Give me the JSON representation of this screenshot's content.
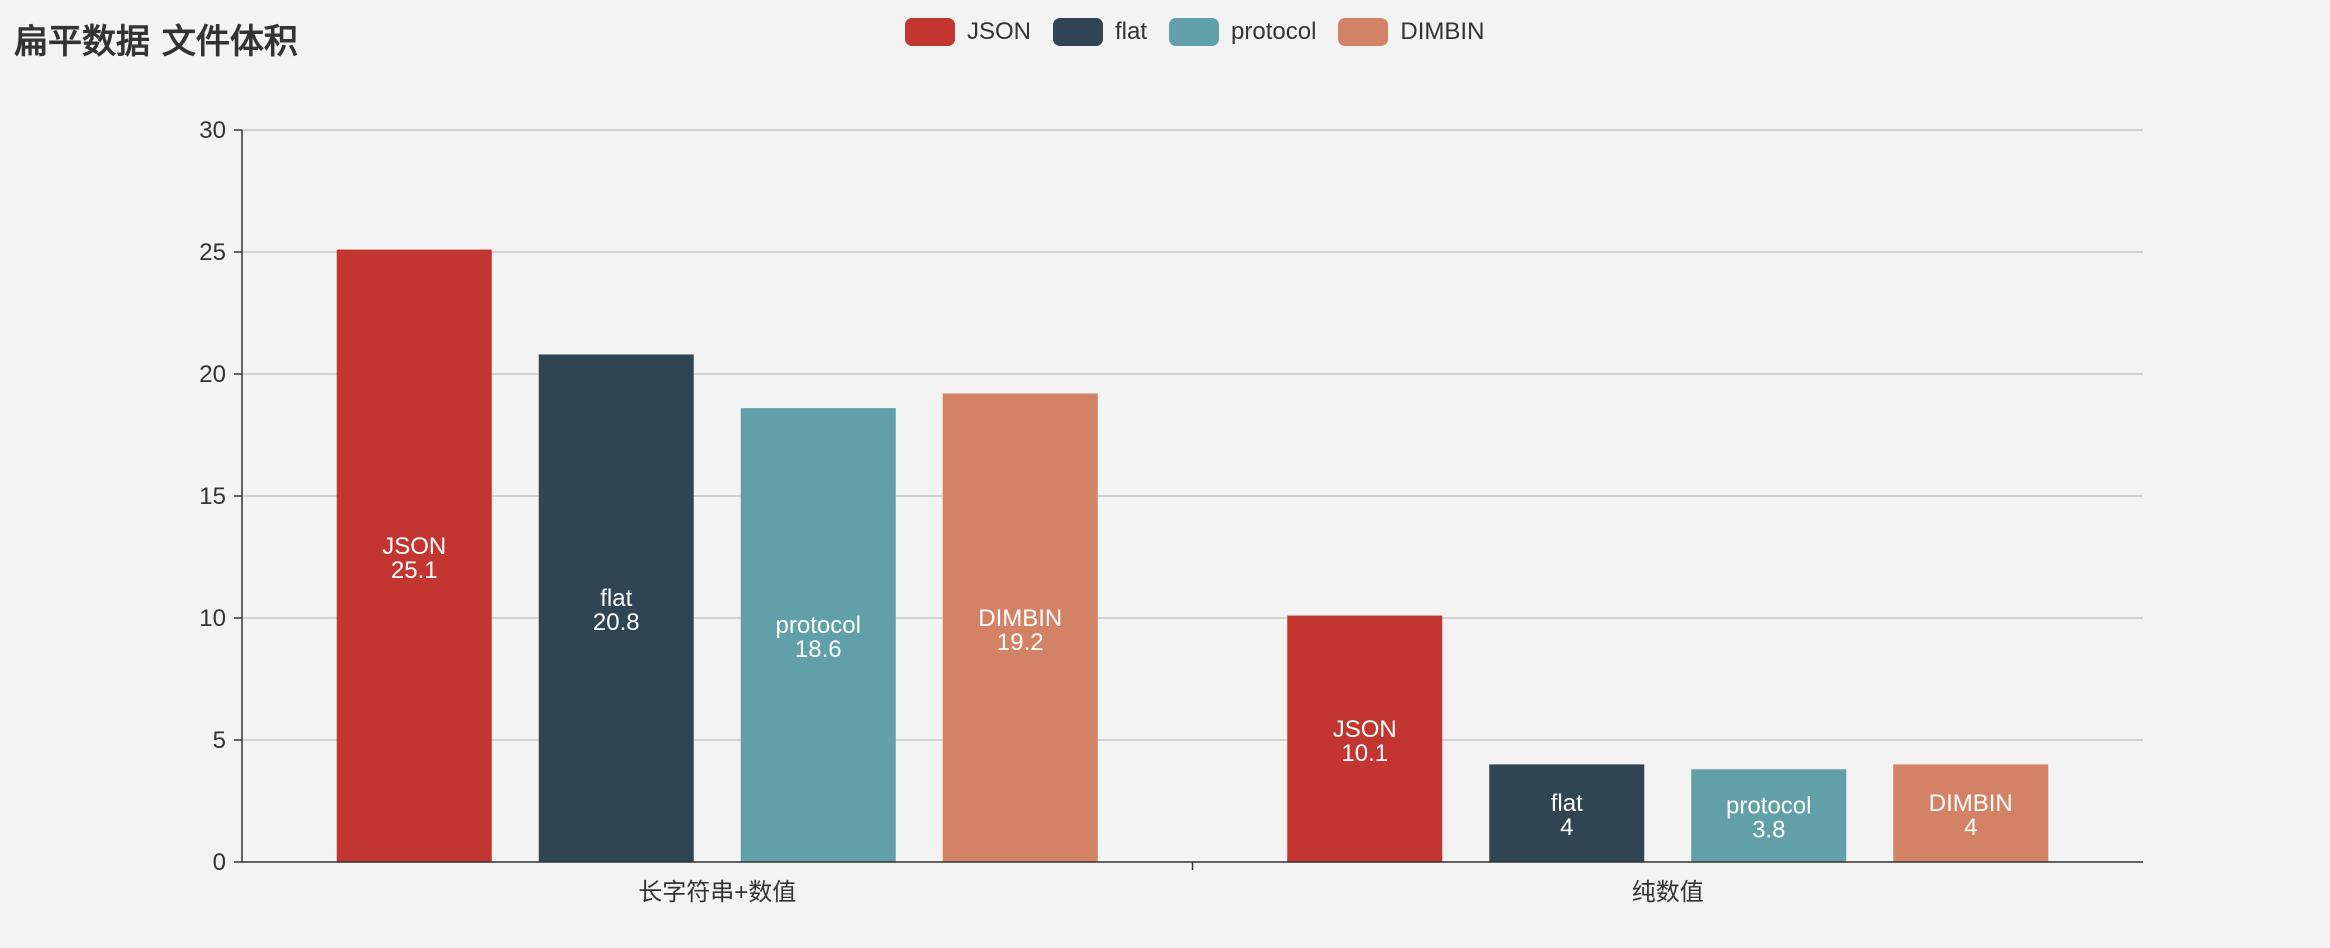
{
  "title": "扁平数据 文件体积",
  "legend": [
    {
      "name": "JSON",
      "color": "#c23531"
    },
    {
      "name": "flat",
      "color": "#2f4554"
    },
    {
      "name": "protocol",
      "color": "#61a0a8"
    },
    {
      "name": "DIMBIN",
      "color": "#d48265"
    }
  ],
  "chart_data": {
    "type": "bar",
    "title": "扁平数据 文件体积",
    "categories": [
      "长字符串+数值",
      "纯数值"
    ],
    "series": [
      {
        "name": "JSON",
        "color": "#c23531",
        "values": [
          25.1,
          10.1
        ]
      },
      {
        "name": "flat",
        "color": "#2f4554",
        "values": [
          20.8,
          4
        ]
      },
      {
        "name": "protocol",
        "color": "#61a0a8",
        "values": [
          18.6,
          3.8
        ]
      },
      {
        "name": "DIMBIN",
        "color": "#d48265",
        "values": [
          19.2,
          4
        ]
      }
    ],
    "ylim": [
      0,
      30
    ],
    "yticks": [
      0,
      5,
      10,
      15,
      20,
      25,
      30
    ],
    "grid": true,
    "legend_position": "top-center",
    "data_labels": "inside"
  }
}
